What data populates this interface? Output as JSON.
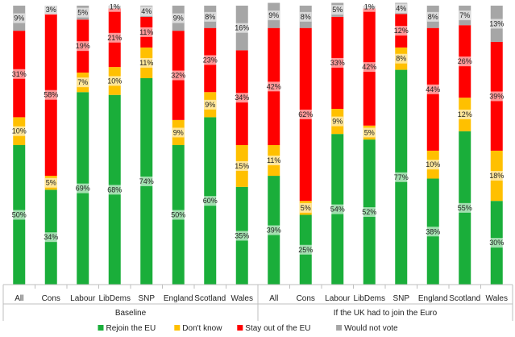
{
  "chart_data": {
    "type": "bar",
    "stacked": true,
    "groups": [
      {
        "name": "Baseline",
        "categories": [
          "All",
          "Cons",
          "Labour",
          "LibDems",
          "SNP",
          "England",
          "Scotland",
          "Wales"
        ]
      },
      {
        "name": "If the UK had to join the Euro",
        "categories": [
          "All",
          "Cons",
          "Labour",
          "LibDems",
          "SNP",
          "England",
          "Scotland",
          "Wales"
        ]
      }
    ],
    "categories": [
      "All",
      "Cons",
      "Labour",
      "LibDems",
      "SNP",
      "England",
      "Scotland",
      "Wales",
      "All",
      "Cons",
      "Labour",
      "LibDems",
      "SNP",
      "England",
      "Scotland",
      "Wales"
    ],
    "series": [
      {
        "name": "Rejoin the EU",
        "color": "#1aae3a",
        "values": [
          50,
          34,
          69,
          68,
          74,
          50,
          60,
          35,
          39,
          25,
          54,
          52,
          77,
          38,
          55,
          30
        ],
        "labels": [
          "50%",
          "34%",
          "69%",
          "68%",
          "74%",
          "50%",
          "60%",
          "35%",
          "39%",
          "25%",
          "54%",
          "52%",
          "77%",
          "38%",
          "55%",
          "30%"
        ]
      },
      {
        "name": "Don't know",
        "color": "#ffc000",
        "values": [
          10,
          5,
          7,
          10,
          11,
          9,
          9,
          15,
          11,
          5,
          9,
          5,
          8,
          10,
          12,
          18
        ],
        "labels": [
          "10%",
          "5%",
          "7%",
          "10%",
          "11%",
          "9%",
          "9%",
          "15%",
          "11%",
          "5%",
          "9%",
          "5%",
          "8%",
          "10%",
          "12%",
          "18%"
        ]
      },
      {
        "name": "Stay out of the EU",
        "color": "#ff0000",
        "values": [
          31,
          58,
          19,
          21,
          11,
          32,
          23,
          34,
          42,
          62,
          33,
          42,
          12,
          44,
          26,
          39
        ],
        "labels": [
          "31%",
          "58%",
          "19%",
          "21%",
          "11%",
          "32%",
          "23%",
          "34%",
          "42%",
          "62%",
          "33%",
          "42%",
          "12%",
          "44%",
          "26%",
          "39%"
        ]
      },
      {
        "name": "Would not vote",
        "color": "#a6a6a6",
        "values": [
          9,
          3,
          5,
          1,
          4,
          9,
          8,
          16,
          9,
          8,
          5,
          1,
          4,
          8,
          7,
          13
        ],
        "labels": [
          "9%",
          "3%",
          "5%",
          "1%",
          "4%",
          "9%",
          "8%",
          "16%",
          "9%",
          "8%",
          "5%",
          "1%",
          "4%",
          "8%",
          "7%",
          "13%"
        ]
      }
    ],
    "ylim": [
      0,
      100
    ],
    "legend_position": "bottom",
    "title": "",
    "xlabel": "",
    "ylabel": ""
  }
}
